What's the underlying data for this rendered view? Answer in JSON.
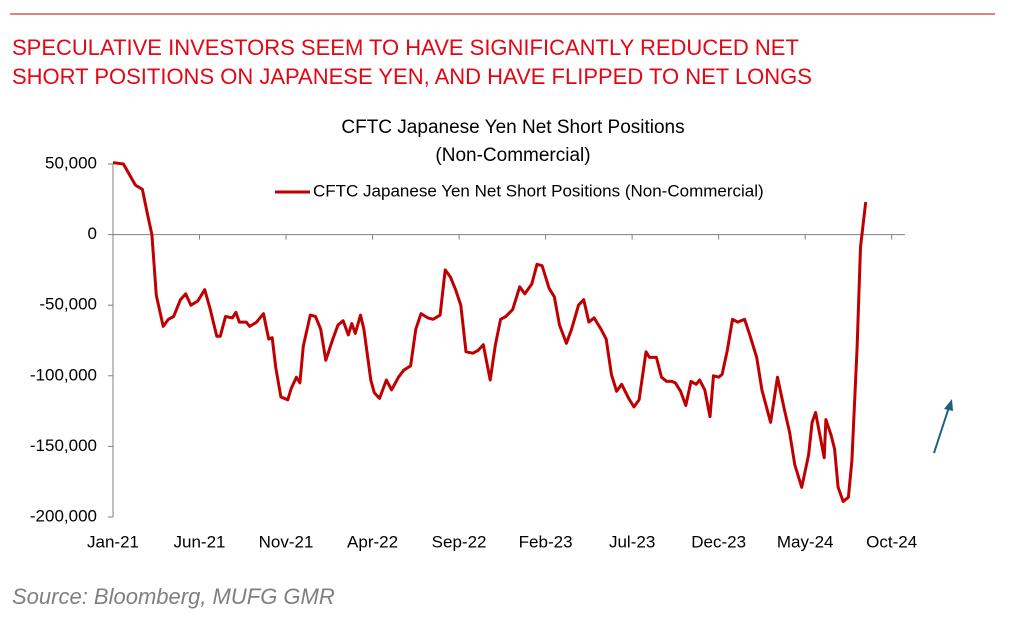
{
  "headline": [
    "SPECULATIVE INVESTORS SEEM TO HAVE SIGNIFICANTLY REDUCED NET",
    "SHORT POSITIONS ON JAPANESE YEN, AND HAVE FLIPPED TO NET LONGS"
  ],
  "source": "Source: Bloomberg, MUFG GMR",
  "chart_data": {
    "type": "line",
    "title": [
      "CFTC Japanese Yen Net Short Positions",
      "(Non-Commercial)"
    ],
    "x": [
      0,
      0.6,
      1.3,
      1.7,
      2.0,
      2.25,
      2.5,
      2.9,
      3.2,
      3.5,
      3.9,
      4.2,
      4.5,
      4.9,
      5.3,
      5.6,
      6.0,
      6.2,
      6.5,
      6.9,
      7.1,
      7.3,
      7.7,
      7.9,
      8.3,
      8.7,
      9.0,
      9.2,
      9.4,
      9.7,
      10.1,
      10.3,
      10.6,
      10.8,
      11.0,
      11.4,
      11.7,
      12.0,
      12.3,
      12.7,
      13.0,
      13.3,
      13.6,
      13.8,
      14.0,
      14.3,
      14.5,
      14.9,
      15.1,
      15.4,
      15.8,
      16.1,
      16.5,
      16.8,
      17.2,
      17.5,
      17.8,
      18.2,
      18.5,
      18.9,
      19.2,
      19.5,
      19.8,
      20.1,
      20.4,
      20.8,
      21.1,
      21.4,
      21.8,
      22.1,
      22.4,
      22.7,
      23.1,
      23.5,
      23.8,
      24.2,
      24.5,
      24.8,
      25.2,
      25.5,
      25.8,
      26.2,
      26.5,
      26.9,
      27.2,
      27.5,
      27.8,
      28.2,
      28.5,
      28.8,
      29.1,
      29.4,
      29.8,
      30.1,
      30.4,
      30.8,
      31.0,
      31.4,
      31.7,
      32.0,
      32.3,
      32.5,
      32.8,
      33.1,
      33.4,
      33.7,
      33.9,
      34.2,
      34.5,
      34.7,
      35.0,
      35.2,
      35.5,
      35.8,
      36.1,
      36.5,
      36.8,
      37.2,
      37.5,
      38.0,
      38.4,
      38.8,
      39.1,
      39.4,
      39.8,
      40.2,
      40.4,
      40.6,
      40.9,
      41.1,
      41.2,
      41.5,
      41.7,
      41.9,
      42.2,
      42.5,
      42.7,
      43.0,
      43.2,
      43.5
    ],
    "series": [
      {
        "name": "CFTC Japanese Yen Net Short Positions (Non-Commercial)",
        "color": "#c00000",
        "values": [
          51000,
          50000,
          35000,
          32000,
          14000,
          0,
          -43000,
          -65000,
          -60000,
          -58000,
          -46000,
          -42000,
          -50000,
          -47000,
          -39000,
          -52000,
          -72000,
          -72000,
          -58000,
          -59000,
          -55000,
          -62000,
          -62000,
          -65000,
          -62000,
          -56000,
          -74000,
          -73000,
          -94000,
          -115000,
          -117000,
          -109000,
          -101000,
          -105000,
          -79000,
          -57000,
          -58000,
          -67000,
          -89000,
          -74000,
          -64000,
          -61000,
          -71000,
          -63000,
          -70000,
          -57000,
          -67000,
          -103000,
          -112000,
          -116000,
          -103000,
          -110000,
          -101000,
          -96000,
          -93000,
          -67000,
          -56000,
          -59000,
          -60000,
          -57000,
          -25000,
          -30000,
          -39000,
          -50000,
          -83000,
          -84000,
          -82000,
          -78000,
          -103000,
          -78000,
          -60000,
          -58000,
          -53000,
          -37000,
          -42000,
          -35000,
          -21000,
          -22000,
          -38000,
          -44000,
          -64000,
          -77000,
          -67000,
          -50000,
          -46000,
          -62000,
          -59000,
          -67000,
          -74000,
          -99000,
          -111000,
          -106000,
          -116000,
          -122000,
          -117000,
          -83000,
          -87000,
          -87000,
          -101000,
          -104000,
          -104000,
          -105000,
          -111000,
          -121000,
          -104000,
          -106000,
          -103000,
          -110000,
          -129000,
          -100000,
          -101000,
          -99000,
          -82000,
          -60000,
          -62000,
          -60000,
          -71000,
          -87000,
          -110000,
          -133000,
          -101000,
          -124000,
          -140000,
          -163000,
          -179000,
          -156000,
          -133000,
          -126000,
          -145000,
          -158000,
          -131000,
          -142000,
          -152000,
          -179000,
          -189000,
          -186000,
          -160000,
          -80000,
          -9000,
          23000
        ]
      }
    ],
    "xlim": [
      0,
      46
    ],
    "xticks": [
      {
        "value": 0,
        "label": "Jan-21"
      },
      {
        "value": 5,
        "label": "Jun-21"
      },
      {
        "value": 10,
        "label": "Nov-21"
      },
      {
        "value": 15,
        "label": "Apr-22"
      },
      {
        "value": 20,
        "label": "Sep-22"
      },
      {
        "value": 25,
        "label": "Feb-23"
      },
      {
        "value": 30,
        "label": "Jul-23"
      },
      {
        "value": 35,
        "label": "Dec-23"
      },
      {
        "value": 40,
        "label": "May-24"
      },
      {
        "value": 45,
        "label": "Oct-24"
      }
    ],
    "ylim": [
      -200000,
      50000
    ],
    "yticks": [
      {
        "value": -200000,
        "label": "-200,000"
      },
      {
        "value": -150000,
        "label": "-150,000"
      },
      {
        "value": -100000,
        "label": "-100,000"
      },
      {
        "value": -50000,
        "label": "-50,000"
      },
      0,
      {
        "value": 50000,
        "label": "50,000"
      }
    ],
    "grid": false,
    "legend": "top"
  }
}
